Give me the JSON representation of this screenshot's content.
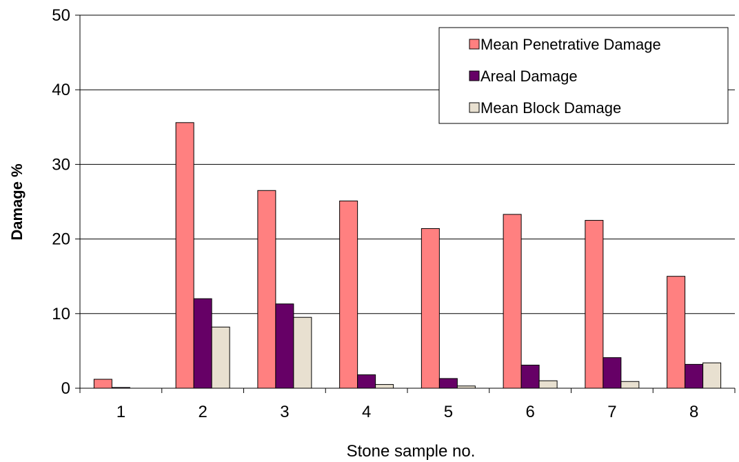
{
  "chart_data": {
    "type": "bar",
    "title": "",
    "xlabel": "Stone sample no.",
    "ylabel": "Damage %",
    "categories": [
      "1",
      "2",
      "3",
      "4",
      "5",
      "6",
      "7",
      "8"
    ],
    "ylim": [
      0,
      50
    ],
    "yticks": [
      0,
      10,
      20,
      30,
      40,
      50
    ],
    "grid": "horizontal",
    "legend_position": "top-right",
    "series": [
      {
        "name": "Mean Penetrative Damage",
        "color": "#FF8080",
        "values": [
          1.2,
          35.6,
          26.5,
          25.1,
          21.4,
          23.3,
          22.5,
          15.0
        ]
      },
      {
        "name": "Areal Damage",
        "color": "#660066",
        "values": [
          0.1,
          12.0,
          11.3,
          1.8,
          1.3,
          3.1,
          4.1,
          3.2
        ]
      },
      {
        "name": "Mean Block Damage",
        "color": "#E8E0D0",
        "values": [
          0.0,
          8.2,
          9.5,
          0.5,
          0.3,
          1.0,
          0.9,
          3.4
        ]
      }
    ]
  }
}
